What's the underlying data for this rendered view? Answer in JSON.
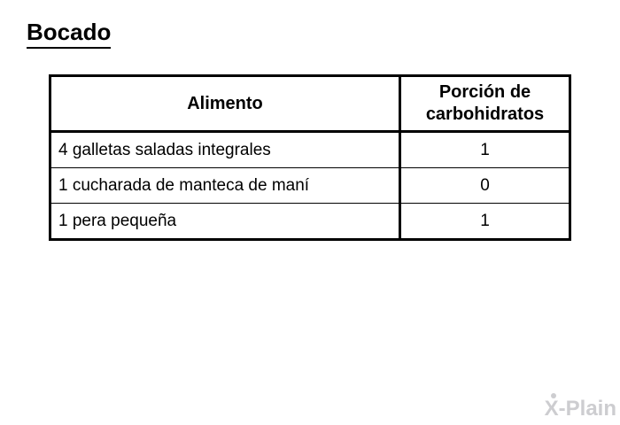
{
  "page": {
    "title": "Bocado"
  },
  "table": {
    "headers": {
      "alimento": "Alimento",
      "porcion": "Porción de carbohidratos"
    },
    "rows": [
      {
        "alimento": "4 galletas saladas integrales",
        "porcion": "1"
      },
      {
        "alimento": "1 cucharada de manteca de maní",
        "porcion": "0"
      },
      {
        "alimento": "1 pera pequeña",
        "porcion": "1"
      }
    ]
  },
  "watermark": {
    "brand": "X-Plain"
  },
  "colors": {
    "background": "#ffffff",
    "text": "#000000",
    "table_border": "#000000",
    "watermark": "#cdcdd0"
  }
}
